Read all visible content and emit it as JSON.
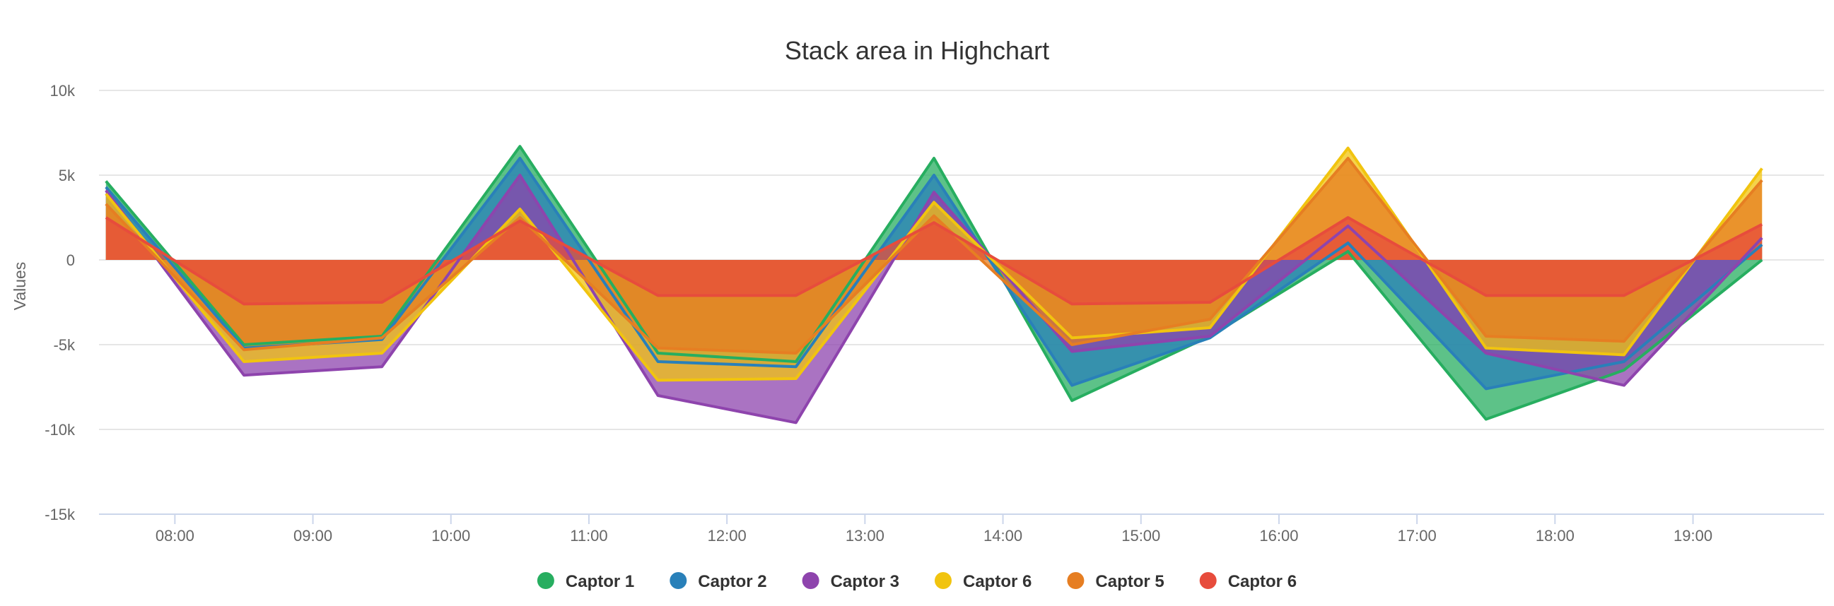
{
  "chart_data": {
    "type": "area",
    "title": "Stack area in Highchart",
    "xlabel": "",
    "ylabel": "Values",
    "x": [
      7.5,
      8.5,
      9.5,
      10.5,
      11.5,
      12.5,
      13.5,
      14.5,
      15.5,
      16.5,
      17.5,
      18.5,
      19.5
    ],
    "xticks": [
      {
        "value": 8,
        "label": "08:00"
      },
      {
        "value": 9,
        "label": "09:00"
      },
      {
        "value": 10,
        "label": "10:00"
      },
      {
        "value": 11,
        "label": "11:00"
      },
      {
        "value": 12,
        "label": "12:00"
      },
      {
        "value": 13,
        "label": "13:00"
      },
      {
        "value": 14,
        "label": "14:00"
      },
      {
        "value": 15,
        "label": "15:00"
      },
      {
        "value": 16,
        "label": "16:00"
      },
      {
        "value": 17,
        "label": "17:00"
      },
      {
        "value": 18,
        "label": "18:00"
      },
      {
        "value": 19,
        "label": "19:00"
      }
    ],
    "xlim": [
      7.45,
      19.95
    ],
    "ylim": [
      -15000,
      10000
    ],
    "yticks": [
      {
        "value": 10000,
        "label": "10k"
      },
      {
        "value": 5000,
        "label": "5k"
      },
      {
        "value": 0,
        "label": "0"
      },
      {
        "value": -5000,
        "label": "-5k"
      },
      {
        "value": -10000,
        "label": "-10k"
      },
      {
        "value": -15000,
        "label": "-15k"
      }
    ],
    "grid": true,
    "legend": "bottom-center",
    "series": [
      {
        "name": "Captor 1",
        "color": "#27ae60",
        "values": [
          4650,
          -5000,
          -4500,
          6700,
          -5500,
          -6000,
          6000,
          -8300,
          -4500,
          500,
          -9400,
          -6500,
          0
        ]
      },
      {
        "name": "Captor 2",
        "color": "#2980b9",
        "values": [
          4300,
          -5200,
          -4700,
          6000,
          -6000,
          -6300,
          5000,
          -7400,
          -4600,
          1000,
          -7600,
          -6000,
          900
        ]
      },
      {
        "name": "Captor 3",
        "color": "#8e44ad",
        "values": [
          4100,
          -6800,
          -6300,
          5000,
          -8000,
          -9600,
          4000,
          -5400,
          -4500,
          2000,
          -5500,
          -7400,
          1300
        ]
      },
      {
        "name": "Captor 6",
        "color": "#f1c40f",
        "values": [
          3900,
          -6000,
          -5500,
          3000,
          -7100,
          -7000,
          3400,
          -4600,
          -4000,
          6600,
          -5200,
          -5600,
          5400
        ]
      },
      {
        "name": "Captor 5",
        "color": "#e67e22",
        "values": [
          3300,
          -5300,
          -4600,
          2500,
          -5200,
          -5500,
          2600,
          -5000,
          -3500,
          6000,
          -4500,
          -4800,
          4700
        ]
      },
      {
        "name": "Captor 6",
        "color": "#e74c3c",
        "values": [
          2500,
          -2600,
          -2500,
          2300,
          -2100,
          -2100,
          2200,
          -2600,
          -2500,
          2500,
          -2100,
          -2100,
          2100
        ]
      }
    ]
  }
}
